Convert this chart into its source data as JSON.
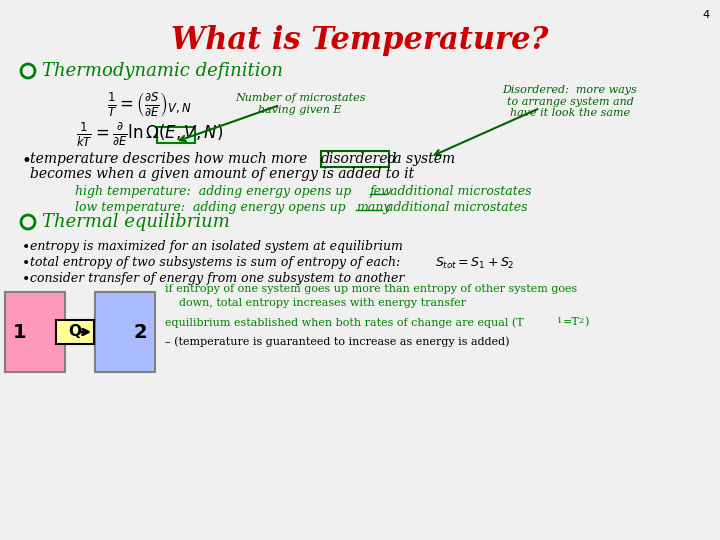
{
  "title": "What is Temperature?",
  "title_color": "#cc0000",
  "bg_color": "#f0f0f0",
  "slide_number": "4",
  "green_color": "#008000",
  "dark_green": "#006400",
  "section1_heading": "Thermodynamic definition",
  "annotation1": "Number of microstates\nhaving given E",
  "annotation2": "Disordered:  more ways\nto arrange system and\nhave it look the same",
  "section2_heading": "Thermal equilibrium",
  "th_bullet1": "entropy is maximized for an isolated system at equilibrium",
  "th_bullet2": "total entropy of two subsystems is sum of entropy of each:  ",
  "th_bullet3": "consider transfer of energy from one subsystem to another",
  "box_text1": "if entropy of one system goes up more than entropy of other system goes",
  "box_text2": "    down, total entropy increases with energy transfer",
  "box_text3": "equilibrium established when both rates of change are equal (T",
  "box_text4": "– (temperature is guaranteed to increase as energy is added)"
}
